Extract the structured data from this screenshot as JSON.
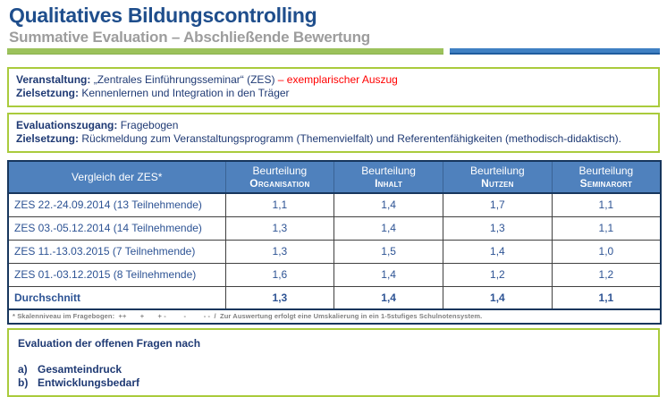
{
  "header": {
    "title": "Qualitatives Bildungscontrolling",
    "subtitle": "Summative Evaluation – Abschließende Bewertung"
  },
  "colors": {
    "title_blue": "#1f4e8c",
    "subtitle_gray": "#9d9d9d",
    "divider_green": "#9cc25c",
    "divider_blue": "#3f80c3",
    "box_border_green": "#aacb3c",
    "table_header_blue": "#4f81bd",
    "table_border_navy": "#17365d",
    "text_navy": "#1f3a74",
    "table_text_blue": "#2d5394",
    "highlight_red": "#ff0000",
    "footnote_gray": "#7f7f7f"
  },
  "info_box_1": {
    "line1_label": "Veranstaltung:",
    "line1_text": "„Zentrales Einführungsseminar“ (ZES)",
    "line1_highlight": "– exemplarischer Auszug",
    "line2_label": "Zielsetzung:",
    "line2_text": "Kennenlernen und Integration in den Träger"
  },
  "info_box_2": {
    "line1_label": "Evaluationszugang:",
    "line1_text": "Fragebogen",
    "line2_label": "Zielsetzung:",
    "line2_text": "Rückmeldung zum Veranstaltungsprogramm (Themenvielfalt) und Referentenfähigkeiten (methodisch-didaktisch)."
  },
  "table": {
    "header": {
      "col1": "Vergleich der ZES*",
      "rating_prefix": "Beurteilung",
      "categories": [
        "Organisation",
        "Inhalt",
        "Nutzen",
        "Seminarort"
      ]
    },
    "rows": [
      {
        "label": "ZES 22.-24.09.2014 (13 Teilnehmende)",
        "values": [
          "1,1",
          "1,4",
          "1,7",
          "1,1"
        ]
      },
      {
        "label": "ZES 03.-05.12.2014 (14 Teilnehmende)",
        "values": [
          "1,3",
          "1,4",
          "1,3",
          "1,1"
        ]
      },
      {
        "label": "ZES 11.-13.03.2015 (7 Teilnehmende)",
        "values": [
          "1,3",
          "1,5",
          "1,4",
          "1,0"
        ]
      },
      {
        "label": "ZES 01.-03.12.2015 (8 Teilnehmende)",
        "values": [
          "1,6",
          "1,4",
          "1,2",
          "1,2"
        ]
      }
    ],
    "summary_row": {
      "label": "Durchschnitt",
      "values": [
        "1,3",
        "1,4",
        "1,4",
        "1,1"
      ]
    },
    "footnote": "* Skalenniveau im Fragebogen:  ++       +       + -         -         - -  /  Zur Auswertung erfolgt eine Umskalierung in ein 1-5stufiges Schulnotensystem."
  },
  "open_questions": {
    "title": "Evaluation der offenen Fragen nach",
    "items": [
      {
        "marker": "a)",
        "text": "Gesamteindruck"
      },
      {
        "marker": "b)",
        "text": "Entwicklungsbedarf"
      }
    ]
  }
}
